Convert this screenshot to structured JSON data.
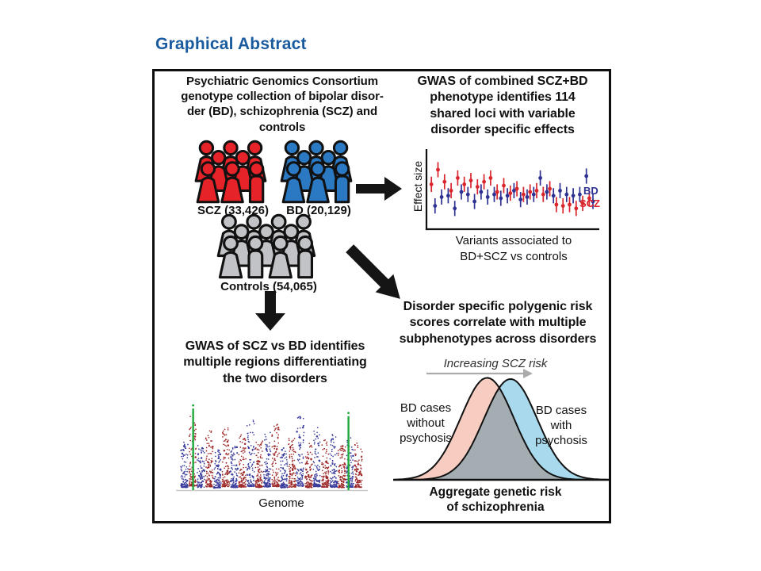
{
  "page": {
    "title": "Graphical Abstract",
    "title_color": "#1A5A9E",
    "background": "#FFFFFF"
  },
  "panels": {
    "collection": {
      "heading": "Psychiatric Genomics Consortium\ngenotype collection of bipolar disor-\nder (BD), schizophrenia (SCZ) and\ncontrols",
      "groups": [
        {
          "id": "scz",
          "label": "SCZ (33,426)",
          "count": 33426,
          "color": "#E62328"
        },
        {
          "id": "bd",
          "label": "BD (20,129)",
          "count": 20129,
          "color": "#2B79C2"
        },
        {
          "id": "controls",
          "label": "Controls (54,065)",
          "count": 54065,
          "color": "#C2C3C7"
        }
      ]
    },
    "gwas_combined": {
      "heading": "GWAS of combined SCZ+BD\nphenotype identifies 114\nshared loci with variable\ndisorder specific effects"
    },
    "gwas_scz_vs_bd": {
      "heading": "GWAS of SCZ vs BD identifies\nmultiple regions differentiating\nthe two disorders"
    },
    "prs": {
      "heading": "Disorder specific polygenic risk\nscores correlate with multiple\nsubphenotypes across disorders",
      "increasing_label": "Increasing SCZ risk",
      "left_label": "BD cases\nwithout\npsychosis",
      "right_label": "BD cases\nwith\npsychosis",
      "xlabel": "Aggregate genetic risk\nof schizophrenia"
    }
  },
  "chart_data": [
    {
      "type": "scatter",
      "name": "effect-size-plot",
      "ylabel": "Effect size",
      "xlabel": "Variants associated to\nBD+SCZ vs controls",
      "legend": [
        {
          "label": "BD",
          "color": "#2E3192"
        },
        {
          "label": "SCZ",
          "color": "#D9252B"
        }
      ],
      "x_count": 25,
      "error_bar_half": 0.12,
      "note": "relative effect sizes (0-1 scale) with error bars, estimated from figure",
      "series": [
        {
          "name": "BD",
          "color": "#2E3192",
          "values": [
            0.28,
            0.42,
            0.44,
            0.24,
            0.5,
            0.46,
            0.35,
            0.5,
            0.42,
            0.46,
            0.4,
            0.44,
            0.52,
            0.38,
            0.42,
            0.46,
            0.72,
            0.5,
            0.44,
            0.52,
            0.46,
            0.44,
            0.46,
            0.75,
            0.35
          ]
        },
        {
          "name": "SCZ",
          "color": "#D9252B",
          "values": [
            0.62,
            0.85,
            0.66,
            0.52,
            0.72,
            0.62,
            0.68,
            0.58,
            0.66,
            0.72,
            0.5,
            0.6,
            0.48,
            0.55,
            0.46,
            0.5,
            0.52,
            0.46,
            0.55,
            0.3,
            0.28,
            0.3,
            0.24,
            0.32,
            0.4
          ]
        }
      ]
    },
    {
      "type": "manhattan",
      "name": "scz-vs-bd-manhattan",
      "xlabel": "Genome",
      "n_chromosomes": 22,
      "colors": {
        "odd": "#3A3C9C",
        "even": "#9E2A2A",
        "highlight": "#1FA83C",
        "baseline": "#C9C9C9"
      },
      "peak_heights": [
        0.58,
        0.9,
        0.55,
        0.7,
        0.48,
        0.75,
        0.52,
        0.66,
        0.85,
        0.58,
        0.7,
        0.8,
        0.5,
        0.62,
        0.88,
        0.55,
        0.75,
        0.6,
        0.66,
        0.52,
        0.62,
        0.58
      ],
      "highlight_spikes": [
        {
          "x_frac": 0.068,
          "height": 0.97
        },
        {
          "x_frac": 0.92,
          "height": 0.88
        }
      ]
    },
    {
      "type": "area",
      "name": "prs-distributions",
      "annotation": "Increasing SCZ risk",
      "xlabel": "Aggregate genetic risk\nof schizophrenia",
      "curves": [
        {
          "name": "BD cases without psychosis",
          "fill": "#F7CDC1",
          "mean_frac": 0.435,
          "sd_frac": 0.125,
          "height_frac": 0.83
        },
        {
          "name": "BD cases with psychosis",
          "fill": "#A9D9EC",
          "mean_frac": 0.545,
          "sd_frac": 0.125,
          "height_frac": 0.82
        }
      ],
      "arrow_color": "#ABABAB"
    }
  ]
}
